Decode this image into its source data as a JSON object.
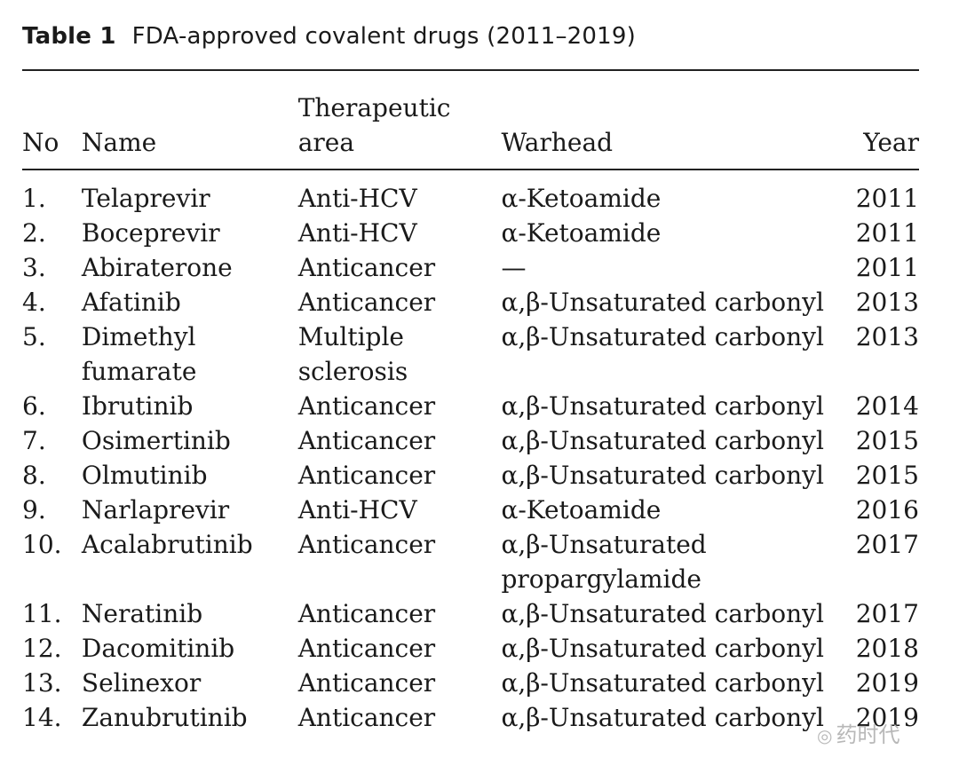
{
  "caption": {
    "label": "Table 1",
    "title": "FDA-approved covalent drugs (2011–2019)"
  },
  "table": {
    "headers": [
      "No",
      "Name",
      "Therapeutic area",
      "Warhead",
      "Year"
    ],
    "rows": [
      [
        "1.",
        "Telaprevir",
        "Anti-HCV",
        "α-Ketoamide",
        "2011"
      ],
      [
        "2.",
        "Boceprevir",
        "Anti-HCV",
        "α-Ketoamide",
        "2011"
      ],
      [
        "3.",
        "Abiraterone",
        "Anticancer",
        "—",
        "2011"
      ],
      [
        "4.",
        "Afatinib",
        "Anticancer",
        "α,β-Unsaturated carbonyl",
        "2013"
      ],
      [
        "5.",
        "Dimethyl fumarate",
        "Multiple sclerosis",
        "α,β-Unsaturated carbonyl",
        "2013"
      ],
      [
        "6.",
        "Ibrutinib",
        "Anticancer",
        "α,β-Unsaturated carbonyl",
        "2014"
      ],
      [
        "7.",
        "Osimertinib",
        "Anticancer",
        "α,β-Unsaturated carbonyl",
        "2015"
      ],
      [
        "8.",
        "Olmutinib",
        "Anticancer",
        "α,β-Unsaturated carbonyl",
        "2015"
      ],
      [
        "9.",
        "Narlaprevir",
        "Anti-HCV",
        "α-Ketoamide",
        "2016"
      ],
      [
        "10.",
        "Acalabrutinib",
        "Anticancer",
        "α,β-Unsaturated propargylamide",
        "2017"
      ],
      [
        "11.",
        "Neratinib",
        "Anticancer",
        "α,β-Unsaturated carbonyl",
        "2017"
      ],
      [
        "12.",
        "Dacomitinib",
        "Anticancer",
        "α,β-Unsaturated carbonyl",
        "2018"
      ],
      [
        "13.",
        "Selinexor",
        "Anticancer",
        "α,β-Unsaturated carbonyl",
        "2019"
      ],
      [
        "14.",
        "Zanubrutinib",
        "Anticancer",
        "α,β-Unsaturated carbonyl",
        "2019"
      ]
    ]
  },
  "watermark": {
    "text": "药时代",
    "icon": "wechat-icon"
  }
}
